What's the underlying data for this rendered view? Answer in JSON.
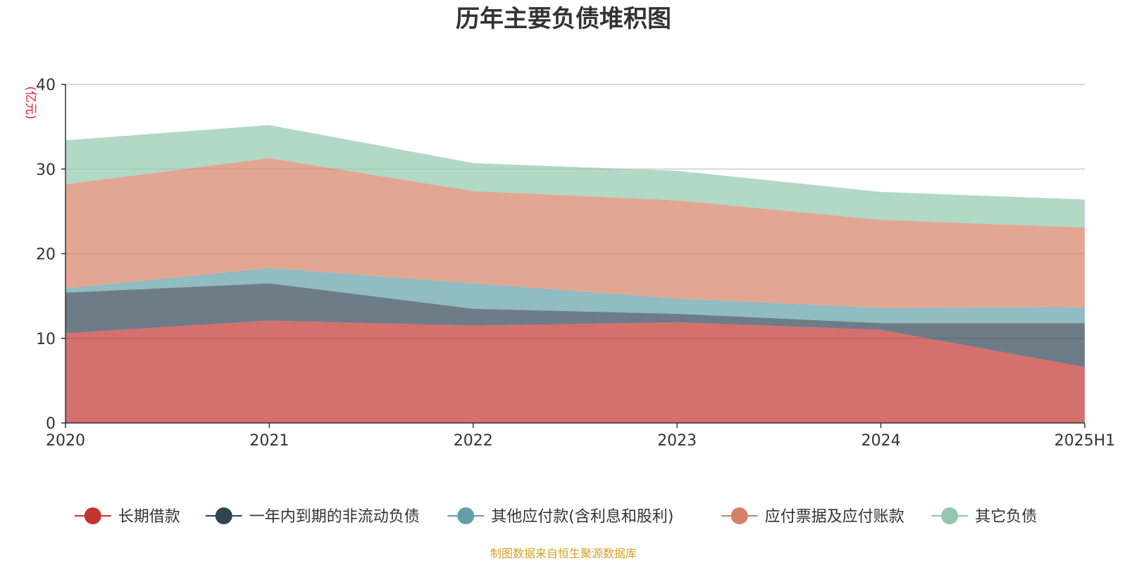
{
  "chart_data": {
    "type": "area",
    "stacked": true,
    "title": "历年主要负债堆积图",
    "ylabel": "(亿元)",
    "xlabel": "",
    "ylim": [
      0,
      40
    ],
    "yticks": [
      0,
      10,
      20,
      30,
      40
    ],
    "grid": true,
    "legend_position": "bottom",
    "categories": [
      "2020",
      "2021",
      "2022",
      "2023",
      "2024",
      "2025H1"
    ],
    "series": [
      {
        "name": "长期借款",
        "color": "#c23531",
        "values": [
          10.6,
          12.1,
          11.5,
          11.9,
          11.0,
          6.6
        ]
      },
      {
        "name": "一年内到期的非流动负债",
        "color": "#2f4554",
        "values": [
          4.8,
          4.4,
          2.0,
          1.0,
          0.8,
          5.2
        ]
      },
      {
        "name": "其他应付款(含利息和股利)",
        "color": "#61a0a8",
        "values": [
          0.5,
          1.8,
          3.0,
          1.8,
          1.8,
          1.9
        ]
      },
      {
        "name": "应付票据及应付账款",
        "color": "#d48265",
        "values": [
          12.3,
          13.0,
          10.9,
          11.6,
          10.4,
          9.4
        ]
      },
      {
        "name": "其它负债",
        "color": "#91c7ae",
        "values": [
          5.2,
          3.9,
          3.3,
          3.5,
          3.3,
          3.3
        ]
      }
    ],
    "source": "制图数据来自恒生聚源数据库"
  }
}
